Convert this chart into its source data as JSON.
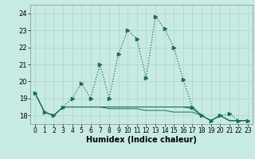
{
  "title": "",
  "xlabel": "Humidex (Indice chaleur)",
  "ylabel": "",
  "background_color": "#c8eae4",
  "grid_color": "#b0d8d0",
  "line_color": "#1a6b5a",
  "xlim": [
    -0.5,
    23.5
  ],
  "ylim": [
    17.5,
    24.5
  ],
  "yticks": [
    18,
    19,
    20,
    21,
    22,
    23,
    24
  ],
  "xticks": [
    0,
    1,
    2,
    3,
    4,
    5,
    6,
    7,
    8,
    9,
    10,
    11,
    12,
    13,
    14,
    15,
    16,
    17,
    18,
    19,
    20,
    21,
    22,
    23
  ],
  "series_main": {
    "x": [
      0,
      1,
      2,
      3,
      4,
      5,
      6,
      7,
      8,
      9,
      10,
      11,
      12,
      13,
      14,
      15,
      16,
      17,
      18,
      19,
      20,
      21,
      22,
      23
    ],
    "y": [
      19.3,
      18.2,
      18.0,
      18.5,
      19.0,
      19.9,
      19.0,
      21.0,
      19.0,
      21.6,
      23.0,
      22.5,
      20.2,
      23.8,
      23.1,
      22.0,
      20.1,
      18.5,
      18.0,
      17.7,
      18.0,
      18.1,
      17.7,
      17.7
    ]
  },
  "series_flat": [
    [
      19.3,
      18.2,
      18.0,
      18.5,
      18.5,
      18.5,
      18.5,
      18.5,
      18.5,
      18.5,
      18.5,
      18.5,
      18.5,
      18.5,
      18.5,
      18.5,
      18.5,
      18.5,
      18.0,
      17.7,
      18.0,
      17.7,
      17.7,
      17.7
    ],
    [
      19.3,
      18.2,
      18.0,
      18.5,
      18.5,
      18.5,
      18.5,
      18.5,
      18.5,
      18.5,
      18.5,
      18.5,
      18.5,
      18.5,
      18.5,
      18.5,
      18.5,
      18.4,
      18.0,
      17.7,
      18.0,
      17.7,
      17.7,
      17.7
    ],
    [
      19.3,
      18.2,
      18.0,
      18.5,
      18.5,
      18.5,
      18.5,
      18.5,
      18.4,
      18.4,
      18.4,
      18.4,
      18.3,
      18.3,
      18.3,
      18.2,
      18.2,
      18.2,
      18.0,
      17.7,
      18.0,
      17.7,
      17.7,
      17.7
    ]
  ],
  "marker_x": [
    0,
    1,
    2,
    3,
    4,
    5,
    6,
    7,
    8,
    9,
    10,
    11,
    12,
    13,
    14,
    15,
    16,
    17,
    18,
    19,
    20,
    21,
    22,
    23
  ],
  "marker_y": [
    19.3,
    18.2,
    18.0,
    18.5,
    19.0,
    19.9,
    19.0,
    21.0,
    19.0,
    21.6,
    23.0,
    22.5,
    20.2,
    23.8,
    23.1,
    22.0,
    20.1,
    18.5,
    18.0,
    17.7,
    18.0,
    18.1,
    17.7,
    17.7
  ]
}
